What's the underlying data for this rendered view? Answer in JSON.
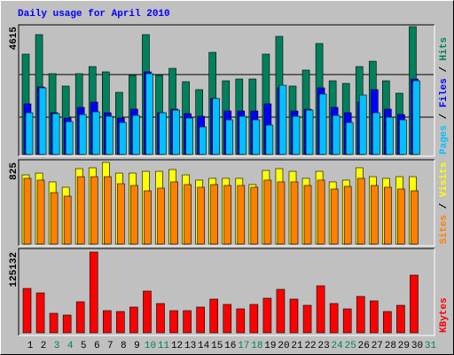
{
  "chart_data": {
    "type": "bar",
    "title": "Daily usage for April 2010",
    "title_color": "#0000ff",
    "categories": [
      "1",
      "2",
      "3",
      "4",
      "5",
      "6",
      "7",
      "8",
      "9",
      "10",
      "11",
      "12",
      "13",
      "14",
      "15",
      "16",
      "17",
      "18",
      "19",
      "20",
      "21",
      "22",
      "23",
      "24",
      "25",
      "26",
      "27",
      "28",
      "29",
      "30",
      "31"
    ],
    "category_colors": [
      "#000000",
      "#000000",
      "#00805c",
      "#00805c",
      "#000000",
      "#000000",
      "#000000",
      "#000000",
      "#000000",
      "#00805c",
      "#00805c",
      "#000000",
      "#000000",
      "#000000",
      "#000000",
      "#000000",
      "#00805c",
      "#00805c",
      "#000000",
      "#000000",
      "#000000",
      "#000000",
      "#000000",
      "#00805c",
      "#00805c",
      "#000000",
      "#000000",
      "#000000",
      "#000000",
      "#000000",
      "#00805c"
    ],
    "legend_separator": " / ",
    "panels": [
      {
        "ylim": [
          0,
          4615
        ],
        "yticks": [
          4615
        ],
        "series": [
          {
            "name": "Hits",
            "color": "#00805c",
            "values": [
              3622,
              4327,
              2917,
              2468,
              2917,
              3173,
              2981,
              2243,
              2853,
              4327,
              2853,
              3109,
              2628,
              2340,
              3686,
              2660,
              2724,
              2724,
              3622,
              4263,
              2468,
              3045,
              4006,
              2660,
              2564,
              3173,
              3365,
              2660,
              2212,
              4615,
              null
            ]
          },
          {
            "name": "Files",
            "color": "#0000ff",
            "values": [
              1827,
              2436,
              1506,
              1314,
              1699,
              1891,
              1506,
              1314,
              1635,
              2981,
              1506,
              1635,
              1474,
              1378,
              2019,
              1570,
              1570,
              1570,
              1827,
              2404,
              1570,
              1635,
              2404,
              1699,
              1506,
              1891,
              2340,
              1635,
              1442,
              2724,
              null
            ]
          },
          {
            "name": "Pages",
            "color": "#00c0ff",
            "values": [
              1506,
              2404,
              1474,
              1186,
              1442,
              1538,
              1378,
              1154,
              1410,
              2917,
              1506,
              1602,
              1314,
              994,
              2019,
              1250,
              1378,
              1250,
              1058,
              2500,
              1378,
              1602,
              2179,
              1410,
              1154,
              2147,
              1506,
              1346,
              1250,
              2660,
              null
            ]
          }
        ]
      },
      {
        "ylim": [
          0,
          825
        ],
        "yticks": [
          825
        ],
        "series": [
          {
            "name": "Visits",
            "color": "#ffff00",
            "values": [
              699,
              717,
              628,
              574,
              762,
              771,
              825,
              717,
              717,
              735,
              735,
              753,
              699,
              646,
              664,
              664,
              664,
              601,
              744,
              762,
              735,
              664,
              735,
              628,
              646,
              771,
              681,
              664,
              681,
              681,
              null
            ]
          },
          {
            "name": "Sites",
            "color": "#ff8000",
            "values": [
              664,
              646,
              520,
              484,
              681,
              681,
              681,
              610,
              592,
              538,
              565,
              628,
              601,
              574,
              601,
              592,
              592,
              574,
              646,
              628,
              628,
              592,
              646,
              556,
              583,
              664,
              592,
              574,
              556,
              538,
              null
            ]
          }
        ]
      },
      {
        "ylim": [
          0,
          125132
        ],
        "yticks": [
          125132
        ],
        "series": [
          {
            "name": "KBytes",
            "color": "#ff0000",
            "values": [
              68750,
              61875,
              30250,
              27500,
              48125,
              125132,
              34375,
              33000,
              39875,
              64625,
              45375,
              34375,
              34375,
              39875,
              52250,
              44000,
              37125,
              44000,
              53625,
              67375,
              52250,
              42625,
              72875,
              45375,
              37125,
              56375,
              49500,
              33000,
              42625,
              89375,
              null
            ]
          }
        ]
      }
    ]
  }
}
